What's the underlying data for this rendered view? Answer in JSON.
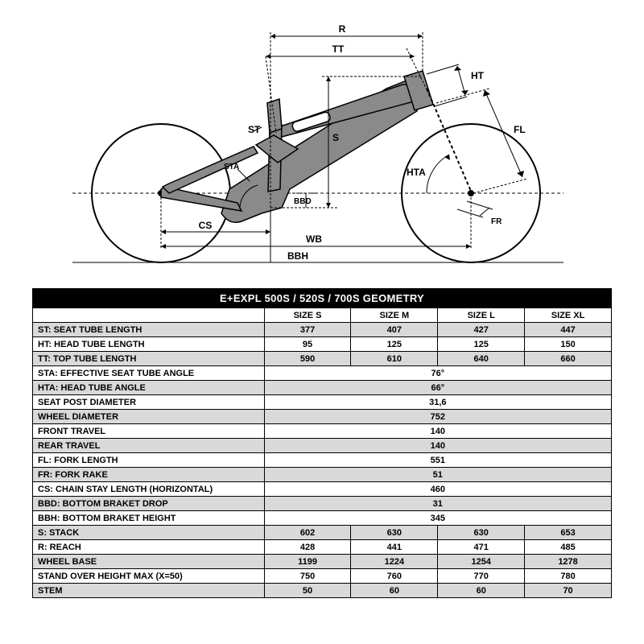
{
  "diagram": {
    "background": "#ffffff",
    "wheel_stroke": "#000000",
    "frame_fill": "#8a8a8a",
    "dim_stroke": "#000000",
    "dim_dash": "3,2",
    "labels": {
      "R": "R",
      "TT": "TT",
      "HT": "HT",
      "FL": "FL",
      "HTA": "HTA",
      "FR": "FR",
      "S": "S",
      "ST": "ST",
      "STA": "STA",
      "CS": "CS",
      "WB": "WB",
      "BBH": "BBH",
      "BBD": "BBD"
    }
  },
  "table": {
    "title": "E+EXPL 500S / 520S / 700S GEOMETRY",
    "columns": [
      "",
      "SIZE S",
      "SIZE M",
      "SIZE L",
      "SIZE XL"
    ],
    "rows": [
      {
        "code": "ST:",
        "label": "SEAT TUBE LENGTH",
        "values": [
          "377",
          "407",
          "427",
          "447"
        ],
        "merged": false,
        "gray": true
      },
      {
        "code": "HT:",
        "label": "HEAD TUBE LENGTH",
        "values": [
          "95",
          "125",
          "125",
          "150"
        ],
        "merged": false,
        "gray": false
      },
      {
        "code": "TT:",
        "label": "TOP TUBE LENGTH",
        "values": [
          "590",
          "610",
          "640",
          "660"
        ],
        "merged": false,
        "gray": true
      },
      {
        "code": "STA:",
        "label": "EFFECTIVE SEAT TUBE ANGLE",
        "values": [
          "76°"
        ],
        "merged": true,
        "gray": false
      },
      {
        "code": "HTA:",
        "label": "HEAD TUBE ANGLE",
        "values": [
          "66°"
        ],
        "merged": true,
        "gray": true
      },
      {
        "code": "",
        "label": "SEAT POST DIAMETER",
        "values": [
          "31,6"
        ],
        "merged": true,
        "gray": false
      },
      {
        "code": "",
        "label": "WHEEL DIAMETER",
        "values": [
          "752"
        ],
        "merged": true,
        "gray": true
      },
      {
        "code": "",
        "label": "FRONT TRAVEL",
        "values": [
          "140"
        ],
        "merged": true,
        "gray": false
      },
      {
        "code": "",
        "label": "REAR TRAVEL",
        "values": [
          "140"
        ],
        "merged": true,
        "gray": true
      },
      {
        "code": "FL:",
        "label": "FORK LENGTH",
        "values": [
          "551"
        ],
        "merged": true,
        "gray": false
      },
      {
        "code": "FR:",
        "label": "FORK RAKE",
        "values": [
          "51"
        ],
        "merged": true,
        "gray": true
      },
      {
        "code": "CS:",
        "label": "CHAIN STAY LENGTH (HORIZONTAL)",
        "values": [
          "460"
        ],
        "merged": true,
        "gray": false
      },
      {
        "code": "BBD:",
        "label": "BOTTOM BRAKET DROP",
        "values": [
          "31"
        ],
        "merged": true,
        "gray": true
      },
      {
        "code": "BBH:",
        "label": "BOTTOM BRAKET HEIGHT",
        "values": [
          "345"
        ],
        "merged": true,
        "gray": false
      },
      {
        "code": "S:",
        "label": "STACK",
        "values": [
          "602",
          "630",
          "630",
          "653"
        ],
        "merged": false,
        "gray": true
      },
      {
        "code": "R:",
        "label": "REACH",
        "values": [
          "428",
          "441",
          "471",
          "485"
        ],
        "merged": false,
        "gray": false
      },
      {
        "code": "",
        "label": "WHEEL BASE",
        "values": [
          "1199",
          "1224",
          "1254",
          "1278"
        ],
        "merged": false,
        "gray": true
      },
      {
        "code": "",
        "label": "STAND OVER HEIGHT MAX (X=50)",
        "values": [
          "750",
          "760",
          "770",
          "780"
        ],
        "merged": false,
        "gray": false
      },
      {
        "code": "",
        "label": "STEM",
        "values": [
          "50",
          "60",
          "60",
          "70"
        ],
        "merged": false,
        "gray": true
      }
    ]
  }
}
